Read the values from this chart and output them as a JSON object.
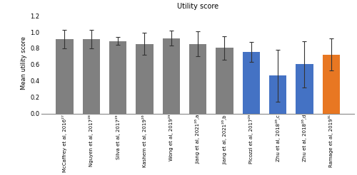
{
  "categories": [
    "McCaffrey et al, 2016²⁷",
    "Nguyen et al, 2017²⁸",
    "Silva et al, 2017²⁹",
    "Kashem et al, 2019²⁶",
    "Wong et al, 2019²⁹",
    "Jiang et al, 2021²⁶,a",
    "Jiang et al, 2021²⁶,b",
    "Picozzi et al, 2017²⁹",
    "Zhu et al, 2018²⁶,c",
    "Zhu et al, 2018²⁶,d",
    "Ramage et al, 2019³¹"
  ],
  "values": [
    0.915,
    0.915,
    0.89,
    0.855,
    0.925,
    0.855,
    0.805,
    0.755,
    0.465,
    0.605,
    0.725
  ],
  "errors": [
    0.115,
    0.115,
    0.045,
    0.135,
    0.09,
    0.155,
    0.145,
    0.125,
    0.32,
    0.285,
    0.195
  ],
  "colors": [
    "#808080",
    "#808080",
    "#808080",
    "#808080",
    "#808080",
    "#808080",
    "#808080",
    "#4472C4",
    "#4472C4",
    "#4472C4",
    "#E87722"
  ],
  "title": "Utility score",
  "ylabel": "Mean utility score",
  "ylim": [
    0,
    1.25
  ],
  "yticks": [
    0.0,
    0.2,
    0.4,
    0.6,
    0.8,
    1.0,
    1.2
  ],
  "bar_width": 0.65,
  "capsize": 2.5,
  "title_fontsize": 7,
  "ylabel_fontsize": 6,
  "tick_labelsize": 6,
  "xlabel_fontsize": 5.0
}
